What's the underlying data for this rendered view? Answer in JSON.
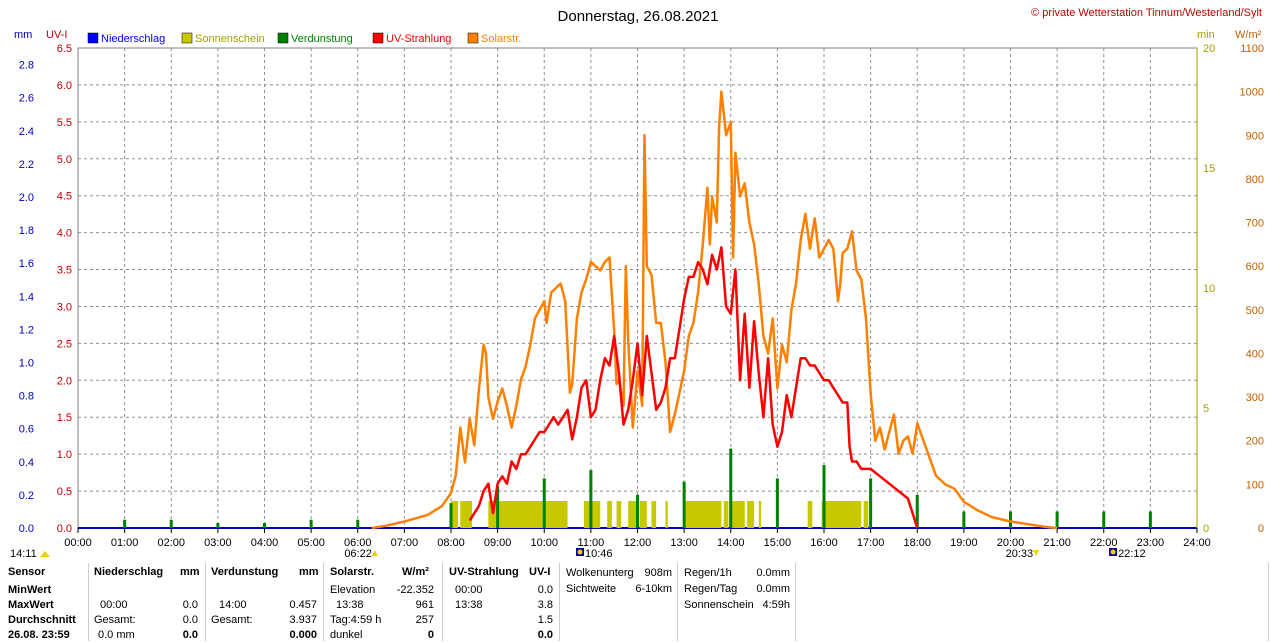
{
  "header": {
    "title": "Donnerstag, 26.08.2021",
    "copyright": "© private Wetterstation Tinnum/Westerland/Sylt"
  },
  "legend": [
    {
      "label": "Niederschlag",
      "color": "#0000ff"
    },
    {
      "label": "Sonnenschein",
      "color": "#c8c800"
    },
    {
      "label": "Verdunstung",
      "color": "#008000"
    },
    {
      "label": "UV-Strahlung",
      "color": "#ff0000"
    },
    {
      "label": "Solarstr.",
      "color": "#ff8000"
    }
  ],
  "axes": {
    "mm_unit": "mm",
    "uv_unit": "UV-I",
    "min_unit": "min",
    "wm2_unit": "W/m²",
    "mm_ticks": [
      "0.0",
      "0.2",
      "0.4",
      "0.6",
      "0.8",
      "1.0",
      "1.2",
      "1.4",
      "1.6",
      "1.8",
      "2.0",
      "2.2",
      "2.4",
      "2.6",
      "2.8"
    ],
    "uv_ticks": [
      "0.0",
      "0.5",
      "1.0",
      "1.5",
      "2.0",
      "2.5",
      "3.0",
      "3.5",
      "4.0",
      "4.5",
      "5.0",
      "5.5",
      "6.0",
      "6.5"
    ],
    "min_ticks": [
      "0",
      "5",
      "10",
      "15",
      "20"
    ],
    "wm2_ticks": [
      "0",
      "100",
      "200",
      "300",
      "400",
      "500",
      "600",
      "700",
      "800",
      "900",
      "1000",
      "1100"
    ],
    "x_ticks": [
      "00:00",
      "01:00",
      "02:00",
      "03:00",
      "04:00",
      "05:00",
      "06:00",
      "07:00",
      "08:00",
      "09:00",
      "10:00",
      "11:00",
      "12:00",
      "13:00",
      "14:00",
      "15:00",
      "16:00",
      "17:00",
      "18:00",
      "19:00",
      "20:00",
      "21:00",
      "22:00",
      "23:00",
      "24:00"
    ]
  },
  "markers": {
    "sunrise": "06:22",
    "sunset": "20:33",
    "moonrise": "10:46",
    "moonset": "22:12",
    "left_time": "14:11"
  },
  "chart_data": {
    "type": "line",
    "title": "Donnerstag, 26.08.2021",
    "x_unit": "hour of day",
    "xlim": [
      0,
      24
    ],
    "ylim_mm": [
      0,
      2.9
    ],
    "ylim_uv": [
      0,
      6.5
    ],
    "ylim_min": [
      0,
      20
    ],
    "ylim_wm2": [
      0,
      1100
    ],
    "series": [
      {
        "name": "Solarstr.",
        "unit": "W/m²",
        "color": "#ff8000",
        "x": [
          6.3,
          6.6,
          7.0,
          7.5,
          7.8,
          8.0,
          8.1,
          8.2,
          8.3,
          8.4,
          8.5,
          8.6,
          8.7,
          8.75,
          8.8,
          8.9,
          9.0,
          9.1,
          9.2,
          9.3,
          9.4,
          9.5,
          9.6,
          9.7,
          9.8,
          9.9,
          10.0,
          10.05,
          10.15,
          10.25,
          10.35,
          10.45,
          10.55,
          10.6,
          10.7,
          10.8,
          10.9,
          11.0,
          11.1,
          11.2,
          11.3,
          11.4,
          11.5,
          11.55,
          11.6,
          11.7,
          11.75,
          11.8,
          11.9,
          12.0,
          12.1,
          12.15,
          12.2,
          12.3,
          12.4,
          12.5,
          12.6,
          12.7,
          12.8,
          12.9,
          13.0,
          13.1,
          13.2,
          13.3,
          13.4,
          13.5,
          13.55,
          13.6,
          13.7,
          13.75,
          13.8,
          13.9,
          14.0,
          14.05,
          14.1,
          14.2,
          14.3,
          14.4,
          14.5,
          14.6,
          14.7,
          14.8,
          14.9,
          15.0,
          15.1,
          15.2,
          15.3,
          15.4,
          15.5,
          15.6,
          15.7,
          15.8,
          15.9,
          16.0,
          16.1,
          16.2,
          16.3,
          16.35,
          16.4,
          16.5,
          16.6,
          16.7,
          16.8,
          16.9,
          17.0,
          17.1,
          17.2,
          17.3,
          17.4,
          17.5,
          17.6,
          17.7,
          17.8,
          17.9,
          18.0,
          18.2,
          18.4,
          18.6,
          18.8,
          19.0,
          19.3,
          19.6,
          20.0,
          20.3,
          20.6,
          20.8,
          21.0
        ],
        "values": [
          0,
          5,
          15,
          30,
          50,
          80,
          120,
          230,
          150,
          250,
          190,
          320,
          420,
          400,
          300,
          250,
          290,
          320,
          280,
          230,
          280,
          340,
          370,
          420,
          480,
          500,
          520,
          470,
          540,
          550,
          560,
          520,
          310,
          330,
          480,
          540,
          570,
          610,
          600,
          590,
          610,
          620,
          450,
          330,
          340,
          280,
          600,
          430,
          230,
          360,
          280,
          900,
          600,
          580,
          470,
          470,
          380,
          220,
          260,
          310,
          360,
          440,
          470,
          540,
          650,
          780,
          650,
          760,
          700,
          920,
          1000,
          900,
          930,
          620,
          860,
          760,
          790,
          700,
          650,
          560,
          440,
          400,
          480,
          320,
          420,
          380,
          500,
          560,
          660,
          720,
          640,
          710,
          620,
          640,
          660,
          640,
          520,
          560,
          630,
          640,
          680,
          590,
          570,
          480,
          310,
          200,
          230,
          180,
          220,
          260,
          170,
          200,
          210,
          170,
          240,
          180,
          120,
          100,
          90,
          60,
          40,
          25,
          15,
          10,
          5,
          2,
          0
        ],
        "xlim": [
          0,
          24
        ],
        "ylim": [
          0,
          1100
        ]
      },
      {
        "name": "UV-Strahlung",
        "unit": "UV-I",
        "color": "#ff0000",
        "x": [
          8.4,
          8.6,
          8.7,
          8.8,
          8.9,
          9.0,
          9.1,
          9.2,
          9.3,
          9.4,
          9.5,
          9.6,
          9.7,
          9.8,
          9.9,
          10.0,
          10.1,
          10.2,
          10.3,
          10.4,
          10.5,
          10.6,
          10.7,
          10.8,
          10.9,
          11.0,
          11.1,
          11.2,
          11.3,
          11.4,
          11.5,
          11.6,
          11.7,
          11.8,
          11.9,
          12.0,
          12.1,
          12.2,
          12.3,
          12.4,
          12.5,
          12.6,
          12.7,
          12.8,
          12.9,
          13.0,
          13.1,
          13.2,
          13.3,
          13.4,
          13.5,
          13.6,
          13.7,
          13.8,
          13.9,
          14.0,
          14.1,
          14.2,
          14.3,
          14.4,
          14.5,
          14.6,
          14.7,
          14.8,
          14.9,
          15.0,
          15.1,
          15.2,
          15.3,
          15.4,
          15.5,
          15.6,
          15.7,
          15.8,
          15.9,
          16.0,
          16.1,
          16.2,
          16.3,
          16.4,
          16.5,
          16.55,
          16.6,
          16.7,
          16.8,
          16.9,
          17.0,
          17.2,
          17.4,
          17.6,
          17.8,
          17.9,
          18.0
        ],
        "values": [
          0.1,
          0.3,
          0.5,
          0.6,
          0.2,
          0.6,
          0.7,
          0.6,
          0.9,
          0.8,
          1.0,
          1.0,
          1.1,
          1.2,
          1.3,
          1.3,
          1.4,
          1.5,
          1.4,
          1.5,
          1.6,
          1.2,
          1.5,
          1.9,
          2.0,
          1.5,
          1.6,
          2.0,
          2.3,
          2.2,
          2.6,
          2.1,
          1.4,
          1.6,
          2.0,
          2.5,
          1.8,
          2.6,
          2.1,
          1.6,
          1.7,
          1.9,
          2.3,
          2.3,
          2.7,
          3.1,
          3.4,
          3.4,
          3.6,
          3.5,
          3.3,
          3.7,
          3.5,
          3.8,
          3.0,
          2.9,
          3.5,
          2.0,
          2.9,
          1.9,
          2.8,
          2.1,
          1.5,
          2.3,
          1.4,
          1.1,
          1.3,
          1.8,
          1.5,
          1.9,
          2.3,
          2.3,
          2.2,
          2.2,
          2.1,
          2.0,
          2.0,
          1.9,
          1.8,
          1.7,
          1.7,
          1.1,
          0.9,
          0.9,
          0.8,
          0.8,
          0.8,
          0.7,
          0.6,
          0.5,
          0.4,
          0.2,
          0.0
        ],
        "xlim": [
          0,
          24
        ],
        "ylim": [
          0,
          6.5
        ]
      },
      {
        "name": "Sonnenschein",
        "unit": "min",
        "color": "#c8c800",
        "bars": [
          [
            8.0,
            8.15
          ],
          [
            8.2,
            8.45
          ],
          [
            8.8,
            10.5
          ],
          [
            10.85,
            11.2
          ],
          [
            11.35,
            11.45
          ],
          [
            11.55,
            11.65
          ],
          [
            11.8,
            12.0
          ],
          [
            12.05,
            12.2
          ],
          [
            12.3,
            12.4
          ],
          [
            12.6,
            12.65
          ],
          [
            13.0,
            13.8
          ],
          [
            13.85,
            13.95
          ],
          [
            14.0,
            14.3
          ],
          [
            14.35,
            14.5
          ],
          [
            14.6,
            14.65
          ],
          [
            15.65,
            15.75
          ],
          [
            15.95,
            16.8
          ],
          [
            16.85,
            16.95
          ]
        ],
        "value": 1,
        "xlim": [
          0,
          24
        ],
        "ylim": [
          0,
          20
        ]
      },
      {
        "name": "Verdunstung",
        "unit": "mm",
        "color": "#008000",
        "bars": [
          [
            1.0,
            0.05
          ],
          [
            2.0,
            0.05
          ],
          [
            3.0,
            0.03
          ],
          [
            4.0,
            0.03
          ],
          [
            5.0,
            0.05
          ],
          [
            6.0,
            0.05
          ],
          [
            8.0,
            0.15
          ],
          [
            9.0,
            0.25
          ],
          [
            10.0,
            0.3
          ],
          [
            11.0,
            0.35
          ],
          [
            12.0,
            0.2
          ],
          [
            13.0,
            0.28
          ],
          [
            14.0,
            0.48
          ],
          [
            15.0,
            0.3
          ],
          [
            16.0,
            0.38
          ],
          [
            17.0,
            0.3
          ],
          [
            18.0,
            0.2
          ],
          [
            19.0,
            0.1
          ],
          [
            20.0,
            0.1
          ],
          [
            21.0,
            0.1
          ],
          [
            22.0,
            0.1
          ],
          [
            23.0,
            0.1
          ]
        ],
        "xlim": [
          0,
          24
        ],
        "ylim": [
          0,
          2.9
        ]
      }
    ]
  },
  "stats": {
    "sensor_col": {
      "header": "Sensor",
      "rows": [
        "MinWert",
        "MaxWert",
        "Durchschnitt",
        "26.08. 23:59"
      ]
    },
    "niederschlag": {
      "header": "Niederschlag",
      "unit": "mm",
      "min": [
        "",
        ""
      ],
      "max": [
        "00:00",
        "0.0"
      ],
      "avg": [
        "Gesamt:",
        "0.0"
      ],
      "last": [
        "0.0 mm",
        "0.0"
      ]
    },
    "verdunstung": {
      "header": "Verdunstung",
      "unit": "mm",
      "min": [
        "",
        ""
      ],
      "max": [
        "14:00",
        "0.457"
      ],
      "avg": [
        "Gesamt:",
        "3.937"
      ],
      "last": [
        "",
        "0.000"
      ]
    },
    "solar": {
      "header": "Solarstr.",
      "unit": "W/m²",
      "min": [
        "Elevation",
        "-22.352"
      ],
      "max": [
        "13:38",
        "961"
      ],
      "avg": [
        "Tag:4:59 h",
        "257"
      ],
      "last": [
        "dunkel",
        "0"
      ]
    },
    "uv": {
      "header": "UV-Strahlung",
      "unit": "UV-I",
      "min": [
        "00:00",
        "0.0"
      ],
      "max": [
        "13:38",
        "3.8"
      ],
      "avg": [
        "",
        "1.5"
      ],
      "last": [
        "",
        "0.0"
      ]
    },
    "cloud": {
      "rows": [
        [
          "Wolkenunterg",
          "908m"
        ],
        [
          "Sichtweite",
          "6-10km"
        ]
      ]
    },
    "rain": {
      "rows": [
        [
          "Regen/1h",
          "0.0mm"
        ],
        [
          "Regen/Tag",
          "0.0mm"
        ],
        [
          "Sonnenschein",
          "4:59h"
        ]
      ]
    }
  }
}
